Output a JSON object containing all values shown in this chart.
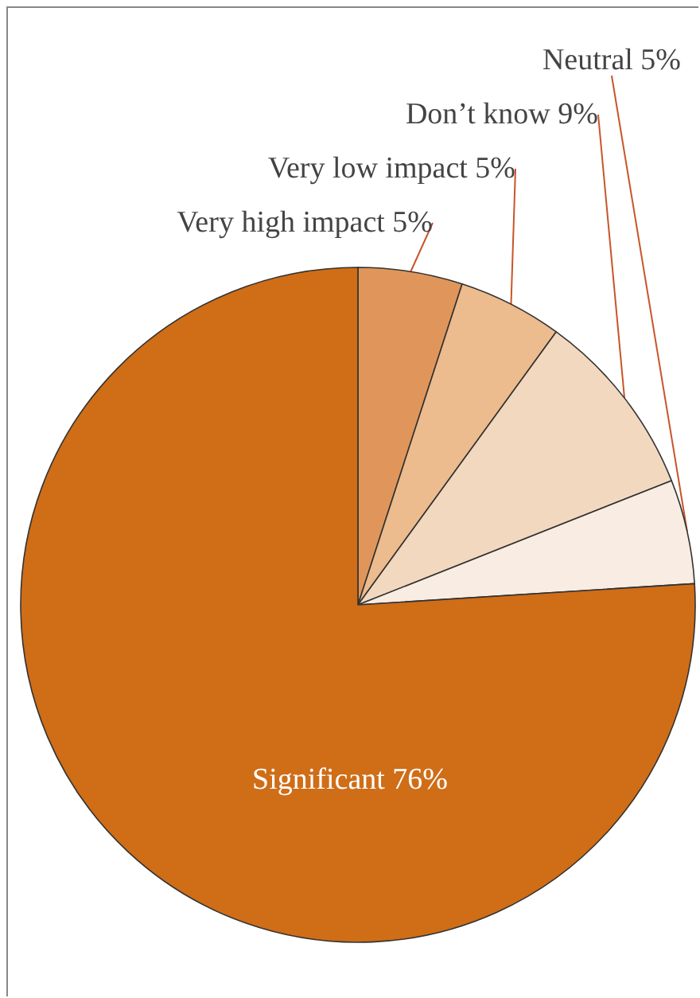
{
  "chart_data": {
    "type": "pie",
    "categories": [
      "Very high impact",
      "Very low impact",
      "Don’t know",
      "Neutral",
      "Significant"
    ],
    "values": [
      5,
      5,
      9,
      5,
      76
    ],
    "value_labels": [
      "5%",
      "5%",
      "9%",
      "5%",
      "76%"
    ],
    "colors": [
      "#e0965a",
      "#ecbb8e",
      "#f2d8bf",
      "#f9ede3",
      "#d06d17"
    ],
    "legend": false
  }
}
